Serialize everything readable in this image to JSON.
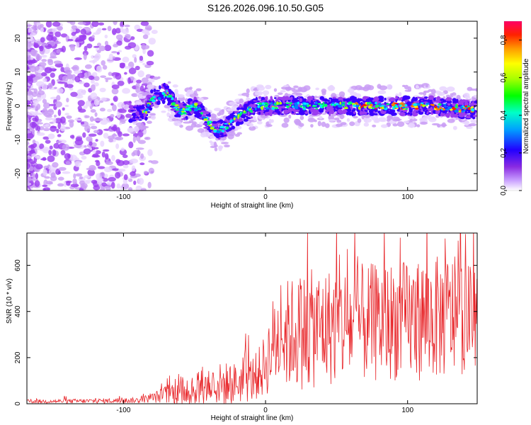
{
  "title": "S126.2026.096.10.50.G05",
  "chart_data": [
    {
      "type": "heatmap",
      "title": "S126.2026.096.10.50.G05",
      "xlabel": "Height of straight line (km)",
      "ylabel": "Frequency (Hz)",
      "xlim": [
        -168,
        149
      ],
      "ylim": [
        -25,
        25
      ],
      "xticks": [
        -100,
        0,
        100
      ],
      "yticks": [
        -20,
        -10,
        0,
        10,
        20
      ],
      "ridge": {
        "x": [
          -90,
          -85,
          -80,
          -75,
          -70,
          -65,
          -60,
          -55,
          -50,
          -45,
          -40,
          -35,
          -30,
          -25,
          -20,
          -15,
          -10,
          -5,
          0,
          10,
          20,
          40,
          60,
          80,
          100,
          120,
          140,
          149
        ],
        "freq": [
          -2,
          -2,
          2,
          3,
          4,
          1,
          -2,
          -1,
          0,
          -2,
          -5,
          -7,
          -7,
          -5,
          -3,
          -2,
          -1,
          0,
          0,
          0,
          0,
          0,
          0,
          0,
          0,
          0,
          -1,
          -1
        ]
      },
      "colorbar": {
        "label": "Normalized spectral amplitude",
        "range": [
          0,
          0.9
        ],
        "ticks": [
          "0.0",
          "0.2",
          "0.4",
          "0.6",
          "0.8"
        ],
        "colormap": "rainbow"
      }
    },
    {
      "type": "line",
      "xlabel": "Height of straight line (km)",
      "ylabel": "SNR (10 * v/v)",
      "xlim": [
        -168,
        149
      ],
      "ylim": [
        0,
        740
      ],
      "xticks": [
        -100,
        0,
        100
      ],
      "yticks": [
        0,
        200,
        400,
        600
      ],
      "line_color": "#e8262a",
      "envelope": {
        "x": [
          -168,
          -120,
          -90,
          -80,
          -70,
          -60,
          -50,
          -40,
          -30,
          -20,
          -10,
          -5,
          0,
          5,
          10,
          20,
          30,
          40,
          50,
          60,
          70,
          80,
          90,
          100,
          110,
          120,
          130,
          140,
          149
        ],
        "base": [
          10,
          12,
          15,
          25,
          40,
          60,
          75,
          80,
          85,
          90,
          105,
          130,
          170,
          260,
          290,
          310,
          320,
          330,
          340,
          340,
          350,
          350,
          360,
          360,
          370,
          370,
          380,
          380,
          370
        ],
        "spread": [
          8,
          10,
          12,
          20,
          40,
          70,
          90,
          90,
          95,
          90,
          100,
          110,
          140,
          200,
          230,
          250,
          260,
          260,
          260,
          260,
          260,
          260,
          260,
          260,
          270,
          270,
          270,
          250,
          200
        ]
      }
    }
  ]
}
